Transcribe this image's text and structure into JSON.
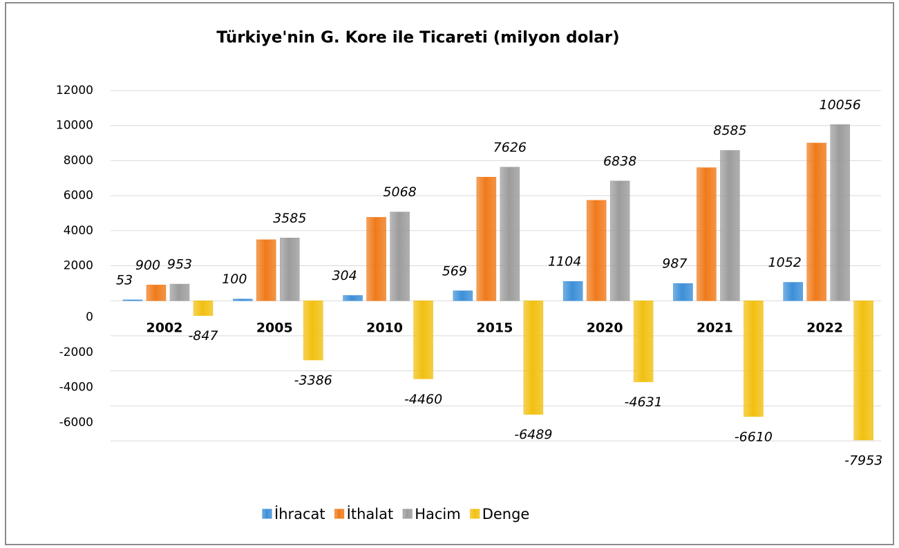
{
  "chart_data": {
    "type": "bar",
    "title": "Türkiye'nin  G. Kore ile Ticareti  (milyon dolar)",
    "categories": [
      "2002",
      "2005",
      "2010",
      "2015",
      "2020",
      "2021",
      "2022"
    ],
    "series": [
      {
        "name": "İhracat",
        "color": "#3c8fd8",
        "values": [
          53,
          100,
          304,
          569,
          1104,
          987,
          1052
        ]
      },
      {
        "name": "İthalat",
        "color": "#f07a1a",
        "values": [
          900,
          3485,
          4764,
          7057,
          5734,
          7598,
          9004
        ],
        "value_labels": [
          "900",
          null,
          null,
          null,
          null,
          null,
          null
        ]
      },
      {
        "name": "Hacim",
        "color": "#9c9c9c",
        "values": [
          953,
          3585,
          5068,
          7626,
          6838,
          8585,
          10056
        ]
      },
      {
        "name": "Denge",
        "color": "#f2c010",
        "values": [
          -847,
          -3386,
          -4460,
          -6489,
          -4631,
          -6610,
          -7953
        ]
      }
    ],
    "ylim": [
      -8000,
      12000
    ],
    "yticks": [
      -6000,
      -4000,
      -2000,
      0,
      2000,
      4000,
      6000,
      8000,
      10000,
      12000
    ],
    "grid": true,
    "legend": "bottom"
  }
}
